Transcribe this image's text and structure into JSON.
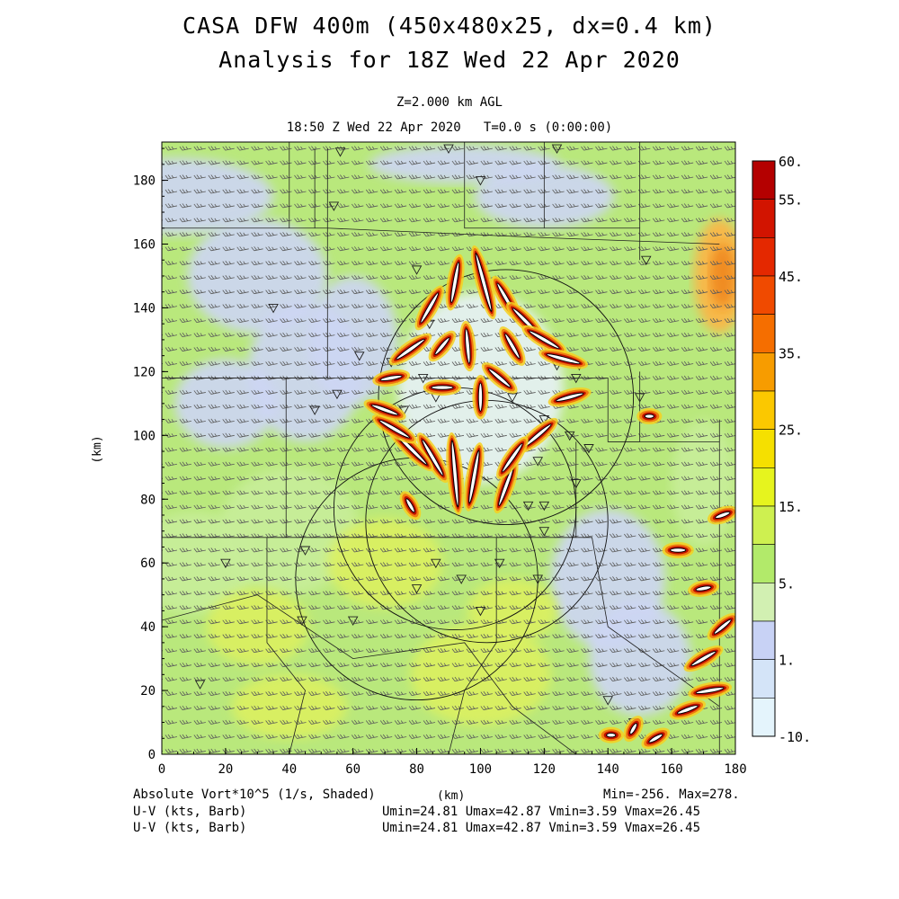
{
  "header": {
    "title_line1": "CASA DFW 400m (450x480x25, dx=0.4 km)",
    "title_line2": "Analysis for 18Z Wed 22 Apr 2020",
    "level": "Z=2.000 km AGL",
    "valid_time": "18:50 Z Wed 22 Apr 2020   T=0.0 s (0:00:00)"
  },
  "footer": {
    "field_label": "Absolute Vort*10^5 (1/s, Shaded)",
    "x_unit": "(km)",
    "minmax": "Min=-256. Max=278.",
    "wind1_label": "U-V (kts, Barb)",
    "wind1_stats": "Umin=24.81 Umax=42.87 Vmin=3.59 Vmax=26.45",
    "wind2_label": "U-V (kts, Barb)",
    "wind2_stats": "Umin=24.81 Umax=42.87 Vmin=3.59 Vmax=26.45"
  },
  "chart_data": {
    "type": "heatmap",
    "xlabel": "(km)",
    "ylabel": "(km)",
    "xlim": [
      0,
      180
    ],
    "ylim": [
      0,
      192
    ],
    "x_ticks": [
      "0",
      "20",
      "40",
      "60",
      "80",
      "100",
      "120",
      "140",
      "160",
      "180"
    ],
    "y_ticks": [
      "0",
      "20",
      "40",
      "60",
      "80",
      "100",
      "120",
      "140",
      "160",
      "180"
    ],
    "colorbar": {
      "labels": [
        "60.",
        "55.",
        "45.",
        "35.",
        "25.",
        "15.",
        "5.",
        "1.",
        "-10."
      ],
      "colors": [
        "#b40000",
        "#d21400",
        "#e42800",
        "#f04a00",
        "#f56e00",
        "#f79c00",
        "#fbc800",
        "#f5e000",
        "#e6f41e",
        "#cef050",
        "#b2ea6a",
        "#d2f0b2",
        "#c8d2f5",
        "#d4e4f8",
        "#e4f4fc"
      ]
    },
    "background_colors": {
      "green": "#b9e87c",
      "light_green": "#c8ee9a",
      "lavender": "#cdd6f4",
      "yellow_green": "#dcf060"
    },
    "high_vorticity_cells": [
      {
        "x": 92,
        "y": 88,
        "len": 22,
        "angle": 95
      },
      {
        "x": 98,
        "y": 87,
        "len": 18,
        "angle": 80
      },
      {
        "x": 108,
        "y": 84,
        "len": 14,
        "angle": 70
      },
      {
        "x": 85,
        "y": 93,
        "len": 14,
        "angle": 120
      },
      {
        "x": 78,
        "y": 96,
        "len": 16,
        "angle": 135
      },
      {
        "x": 73,
        "y": 102,
        "len": 12,
        "angle": 150
      },
      {
        "x": 70,
        "y": 108,
        "len": 10,
        "angle": 160
      },
      {
        "x": 72,
        "y": 118,
        "len": 8,
        "angle": 190
      },
      {
        "x": 78,
        "y": 127,
        "len": 12,
        "angle": 215
      },
      {
        "x": 84,
        "y": 140,
        "len": 12,
        "angle": 240
      },
      {
        "x": 92,
        "y": 148,
        "len": 14,
        "angle": 260
      },
      {
        "x": 101,
        "y": 148,
        "len": 20,
        "angle": 285
      },
      {
        "x": 108,
        "y": 143,
        "len": 12,
        "angle": 300
      },
      {
        "x": 114,
        "y": 136,
        "len": 12,
        "angle": 315
      },
      {
        "x": 120,
        "y": 130,
        "len": 12,
        "angle": 330
      },
      {
        "x": 126,
        "y": 124,
        "len": 12,
        "angle": 345
      },
      {
        "x": 128,
        "y": 112,
        "len": 10,
        "angle": 15
      },
      {
        "x": 118,
        "y": 100,
        "len": 12,
        "angle": 40
      },
      {
        "x": 110,
        "y": 93,
        "len": 12,
        "angle": 55
      },
      {
        "x": 88,
        "y": 115,
        "len": 8,
        "angle": 180
      },
      {
        "x": 100,
        "y": 112,
        "len": 10,
        "angle": 270
      },
      {
        "x": 106,
        "y": 118,
        "len": 10,
        "angle": 320
      },
      {
        "x": 96,
        "y": 128,
        "len": 12,
        "angle": 275
      },
      {
        "x": 88,
        "y": 128,
        "len": 8,
        "angle": 230
      },
      {
        "x": 110,
        "y": 128,
        "len": 10,
        "angle": 300
      },
      {
        "x": 78,
        "y": 78,
        "len": 6,
        "angle": 120
      },
      {
        "x": 141,
        "y": 6,
        "len": 4,
        "angle": 0
      },
      {
        "x": 148,
        "y": 8,
        "len": 5,
        "angle": 60
      },
      {
        "x": 155,
        "y": 5,
        "len": 6,
        "angle": 30
      },
      {
        "x": 165,
        "y": 14,
        "len": 8,
        "angle": 20
      },
      {
        "x": 172,
        "y": 20,
        "len": 10,
        "angle": 10
      },
      {
        "x": 170,
        "y": 30,
        "len": 10,
        "angle": 30
      },
      {
        "x": 176,
        "y": 40,
        "len": 8,
        "angle": 40
      },
      {
        "x": 162,
        "y": 64,
        "len": 6,
        "angle": 0
      },
      {
        "x": 170,
        "y": 52,
        "len": 6,
        "angle": 10
      },
      {
        "x": 176,
        "y": 75,
        "len": 6,
        "angle": 20
      },
      {
        "x": 153,
        "y": 106,
        "len": 4,
        "angle": 0
      }
    ],
    "radar_rings": [
      {
        "x": 80,
        "y": 55,
        "r": 38
      },
      {
        "x": 92,
        "y": 77,
        "r": 38
      },
      {
        "x": 108,
        "y": 112,
        "r": 40
      },
      {
        "x": 102,
        "y": 73,
        "r": 38
      }
    ]
  }
}
